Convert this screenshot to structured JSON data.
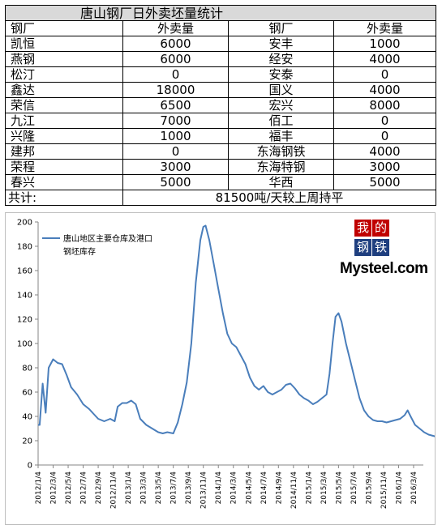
{
  "table": {
    "title": "唐山钢厂日外卖坯量统计",
    "headers": [
      "钢厂",
      "外卖量",
      "钢厂",
      "外卖量"
    ],
    "rows": [
      [
        "凯恒",
        "6000",
        "安丰",
        "1000"
      ],
      [
        "燕钢",
        "6000",
        "经安",
        "4000"
      ],
      [
        "松汀",
        "0",
        "安泰",
        "0"
      ],
      [
        "鑫达",
        "18000",
        "国义",
        "4000"
      ],
      [
        "荣信",
        "6500",
        "宏兴",
        "8000"
      ],
      [
        "九江",
        "7000",
        "佰工",
        "0"
      ],
      [
        "兴隆",
        "1000",
        "福丰",
        "0"
      ],
      [
        "建邦",
        "0",
        "东海钢铁",
        "4000"
      ],
      [
        "荣程",
        "3000",
        "东海特钢",
        "3000"
      ],
      [
        "春兴",
        "5000",
        "华西",
        "5000"
      ]
    ],
    "total_label": "共计:",
    "total_value": "81500吨/天较上周持平"
  },
  "logo": {
    "chars": [
      "我",
      "的",
      "钢",
      "铁"
    ],
    "word": "Mysteel.com",
    "colors": [
      "#c00000",
      "#c00000",
      "#1f3f7f",
      "#1f3f7f"
    ]
  },
  "chart_data": {
    "type": "line",
    "title": "",
    "xlabel": "",
    "ylabel": "",
    "ylim": [
      0,
      200
    ],
    "yticks": [
      0,
      20,
      40,
      60,
      80,
      100,
      120,
      140,
      160,
      180,
      200
    ],
    "xticks": [
      "2012/1/4",
      "2012/3/4",
      "2012/5/4",
      "2012/7/4",
      "2012/9/4",
      "2012/11/4",
      "2013/1/4",
      "2013/3/4",
      "2013/5/4",
      "2013/7/4",
      "2013/9/4",
      "2013/11/4",
      "2014/1/4",
      "2014/3/4",
      "2014/5/4",
      "2014/7/4",
      "2014/9/4",
      "2014/11/4",
      "2015/1/4",
      "2015/3/4",
      "2015/5/4",
      "2015/7/4",
      "2015/9/4",
      "2015/11/4",
      "2016/1/4",
      "2016/3/4"
    ],
    "grid": false,
    "legend_position": "top-left",
    "series": [
      {
        "name": "唐山地区主要仓库及港口钢坯库存",
        "color": "#4a7ebb",
        "points": [
          [
            0,
            33
          ],
          [
            0.1,
            33
          ],
          [
            0.3,
            67
          ],
          [
            0.5,
            43
          ],
          [
            0.7,
            80
          ],
          [
            1.0,
            87
          ],
          [
            1.3,
            84
          ],
          [
            1.6,
            83
          ],
          [
            1.9,
            74
          ],
          [
            2.2,
            64
          ],
          [
            2.6,
            58
          ],
          [
            3.0,
            50
          ],
          [
            3.4,
            46
          ],
          [
            3.7,
            42
          ],
          [
            4.0,
            38
          ],
          [
            4.4,
            36
          ],
          [
            4.8,
            38
          ],
          [
            5.1,
            36
          ],
          [
            5.3,
            48
          ],
          [
            5.6,
            51
          ],
          [
            5.9,
            51
          ],
          [
            6.2,
            53
          ],
          [
            6.5,
            50
          ],
          [
            6.8,
            38
          ],
          [
            7.2,
            33
          ],
          [
            7.6,
            30
          ],
          [
            8.0,
            27
          ],
          [
            8.3,
            26
          ],
          [
            8.6,
            27
          ],
          [
            9.0,
            26
          ],
          [
            9.3,
            35
          ],
          [
            9.6,
            50
          ],
          [
            9.9,
            68
          ],
          [
            10.2,
            100
          ],
          [
            10.5,
            150
          ],
          [
            10.8,
            185
          ],
          [
            11.0,
            196
          ],
          [
            11.15,
            197
          ],
          [
            11.4,
            185
          ],
          [
            11.7,
            165
          ],
          [
            12.0,
            145
          ],
          [
            12.3,
            125
          ],
          [
            12.6,
            108
          ],
          [
            12.9,
            100
          ],
          [
            13.2,
            97
          ],
          [
            13.5,
            90
          ],
          [
            13.8,
            83
          ],
          [
            14.1,
            72
          ],
          [
            14.4,
            65
          ],
          [
            14.7,
            62
          ],
          [
            15.0,
            65
          ],
          [
            15.3,
            60
          ],
          [
            15.6,
            58
          ],
          [
            15.9,
            60
          ],
          [
            16.2,
            62
          ],
          [
            16.5,
            66
          ],
          [
            16.8,
            67
          ],
          [
            17.1,
            63
          ],
          [
            17.4,
            58
          ],
          [
            17.7,
            55
          ],
          [
            18.0,
            53
          ],
          [
            18.3,
            50
          ],
          [
            18.6,
            52
          ],
          [
            18.9,
            55
          ],
          [
            19.2,
            58
          ],
          [
            19.4,
            75
          ],
          [
            19.6,
            100
          ],
          [
            19.8,
            122
          ],
          [
            20.0,
            125
          ],
          [
            20.2,
            118
          ],
          [
            20.5,
            100
          ],
          [
            20.8,
            85
          ],
          [
            21.1,
            70
          ],
          [
            21.4,
            55
          ],
          [
            21.7,
            45
          ],
          [
            22.0,
            40
          ],
          [
            22.3,
            37
          ],
          [
            22.6,
            36
          ],
          [
            22.9,
            36
          ],
          [
            23.2,
            35
          ],
          [
            23.5,
            36
          ],
          [
            23.8,
            37
          ],
          [
            24.1,
            38
          ],
          [
            24.4,
            41
          ],
          [
            24.6,
            45
          ],
          [
            24.8,
            40
          ],
          [
            25.1,
            33
          ],
          [
            25.4,
            30
          ],
          [
            25.7,
            27
          ],
          [
            26.0,
            25
          ],
          [
            26.3,
            24
          ],
          [
            26.6,
            23
          ],
          [
            26.9,
            25
          ],
          [
            27.2,
            30
          ],
          [
            27.5,
            40
          ],
          [
            27.8,
            60
          ],
          [
            28.1,
            95
          ],
          [
            28.4,
            125
          ],
          [
            28.6,
            140
          ],
          [
            28.8,
            133
          ],
          [
            29.1,
            108
          ],
          [
            29.4,
            95
          ],
          [
            29.7,
            85
          ],
          [
            30.0,
            78
          ],
          [
            30.3,
            72
          ],
          [
            30.6,
            68
          ],
          [
            30.9,
            65
          ],
          [
            31.2,
            62
          ],
          [
            31.5,
            70
          ],
          [
            31.8,
            85
          ],
          [
            32.1,
            90
          ],
          [
            32.3,
            86
          ],
          [
            32.6,
            82
          ],
          [
            32.9,
            86
          ],
          [
            33.2,
            88
          ],
          [
            33.5,
            82
          ],
          [
            33.8,
            78
          ],
          [
            34.1,
            75
          ],
          [
            34.4,
            72
          ],
          [
            34.7,
            68
          ],
          [
            35.0,
            60
          ],
          [
            35.3,
            50
          ],
          [
            35.6,
            40
          ],
          [
            35.9,
            38
          ],
          [
            36.2,
            36
          ],
          [
            36.5,
            33
          ],
          [
            36.8,
            38
          ],
          [
            37.1,
            45
          ],
          [
            37.3,
            60
          ],
          [
            37.6,
            62
          ],
          [
            37.9,
            55
          ],
          [
            38.2,
            50
          ],
          [
            38.4,
            48
          ],
          [
            38.6,
            50
          ]
        ]
      }
    ]
  }
}
